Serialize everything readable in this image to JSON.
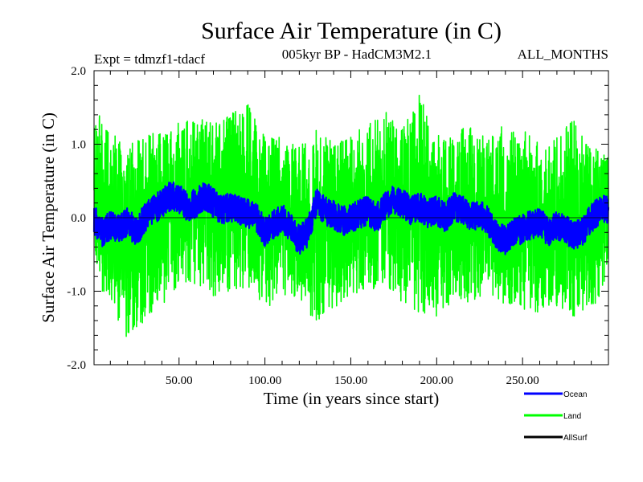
{
  "chart_data": {
    "type": "line",
    "title": "Surface Air Temperature (in C)",
    "subtitle_left": "Expt = tdmzf1-tdacf",
    "subtitle_center": "005kyr BP - HadCM3M2.1",
    "subtitle_right": "ALL_MONTHS",
    "xlabel": "Time (in years since start)",
    "ylabel": "Surface Air Temperature (in C)",
    "xlim": [
      0.5,
      300
    ],
    "ylim": [
      -2.0,
      2.0
    ],
    "x_ticks": [
      50,
      100,
      150,
      200,
      250
    ],
    "x_tick_labels": [
      "50.00",
      "100.00",
      "150.00",
      "200.00",
      "250.00"
    ],
    "y_ticks": [
      -2.0,
      -1.0,
      0.0,
      1.0,
      2.0
    ],
    "y_tick_labels": [
      "-2.0",
      "-1.0",
      "0.0",
      "1.0",
      "2.0"
    ],
    "zero_line": true,
    "legend_position": "bottom-right",
    "series": [
      {
        "name": "Land",
        "color": "#00ff00",
        "samples_per_year": 12,
        "envelope_x": [
          0,
          10,
          20,
          30,
          40,
          50,
          60,
          70,
          80,
          90,
          100,
          110,
          120,
          130,
          140,
          150,
          160,
          170,
          180,
          190,
          200,
          210,
          220,
          230,
          240,
          250,
          260,
          270,
          280,
          290,
          300
        ],
        "envelope_max": [
          1.5,
          1.2,
          1.0,
          1.1,
          1.2,
          1.3,
          1.4,
          1.3,
          1.4,
          1.65,
          1.1,
          1.1,
          1.0,
          1.35,
          1.0,
          1.1,
          1.3,
          1.45,
          1.2,
          1.75,
          1.1,
          1.3,
          1.25,
          1.05,
          1.3,
          1.2,
          1.05,
          1.1,
          1.35,
          0.95,
          0.9
        ],
        "envelope_min": [
          -0.8,
          -1.2,
          -1.65,
          -1.4,
          -1.2,
          -0.9,
          -0.9,
          -1.1,
          -1.0,
          -1.0,
          -1.25,
          -1.1,
          -1.1,
          -1.45,
          -1.3,
          -1.1,
          -1.0,
          -0.9,
          -1.2,
          -1.3,
          -1.4,
          -1.1,
          -1.2,
          -1.0,
          -1.2,
          -1.25,
          -1.3,
          -1.2,
          -1.35,
          -1.3,
          -0.8
        ]
      },
      {
        "name": "Ocean",
        "color": "#0000ff",
        "samples_per_year": 12,
        "anchor_x": [
          0,
          5,
          10,
          15,
          20,
          25,
          30,
          35,
          40,
          45,
          50,
          55,
          60,
          65,
          70,
          75,
          80,
          85,
          90,
          95,
          100,
          105,
          110,
          115,
          120,
          125,
          130,
          135,
          140,
          145,
          150,
          155,
          160,
          165,
          170,
          175,
          180,
          185,
          190,
          195,
          200,
          205,
          210,
          215,
          220,
          225,
          230,
          235,
          240,
          245,
          250,
          255,
          260,
          265,
          270,
          275,
          280,
          285,
          290,
          295,
          300
        ],
        "anchor_y": [
          0.0,
          -0.2,
          -0.1,
          -0.15,
          -0.05,
          -0.2,
          0.0,
          0.1,
          0.2,
          0.3,
          0.25,
          0.15,
          0.2,
          0.3,
          0.2,
          0.1,
          0.15,
          0.1,
          0.05,
          0.0,
          -0.2,
          -0.1,
          0.0,
          -0.15,
          -0.3,
          -0.2,
          0.2,
          0.1,
          0.05,
          -0.05,
          0.0,
          0.05,
          0.1,
          0.0,
          0.15,
          0.25,
          0.2,
          0.1,
          0.15,
          0.05,
          0.1,
          0.0,
          0.15,
          0.1,
          0.0,
          0.05,
          -0.05,
          -0.25,
          -0.3,
          -0.2,
          -0.15,
          -0.1,
          -0.05,
          -0.2,
          -0.1,
          -0.15,
          -0.25,
          -0.2,
          0.0,
          0.1,
          0.1
        ],
        "noise_amplitude": 0.2
      },
      {
        "name": "AllSurf",
        "color": "#000000",
        "samples_per_year": 12,
        "note_visible": false
      }
    ]
  }
}
